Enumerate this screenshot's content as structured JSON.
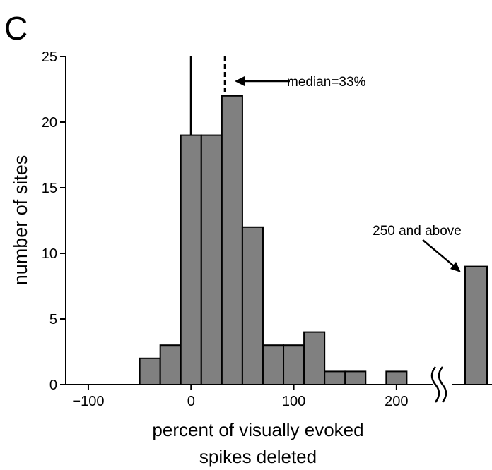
{
  "chart_data": {
    "type": "histogram",
    "panel_label": "C",
    "x_label_lines": [
      "percent of visually evoked",
      "spikes deleted"
    ],
    "y_label": "number of sites",
    "bins": [
      -50,
      -30,
      -10,
      10,
      30,
      50,
      70,
      90,
      110,
      130,
      150,
      170,
      190,
      210
    ],
    "values": [
      2,
      3,
      19,
      19,
      22,
      12,
      3,
      3,
      4,
      1,
      1,
      0,
      1
    ],
    "overflow": {
      "label": "250 and above",
      "value": 9
    },
    "reference_line": 0,
    "median": 33,
    "median_label": "median=33%",
    "color": "#808080",
    "xlim": [
      -122,
      293
    ],
    "xticks": [
      {
        "value": -100,
        "label": "−100"
      },
      0,
      100,
      200
    ],
    "ylim": [
      0,
      25
    ],
    "yticks": [
      0,
      5,
      10,
      15,
      20,
      25
    ]
  }
}
